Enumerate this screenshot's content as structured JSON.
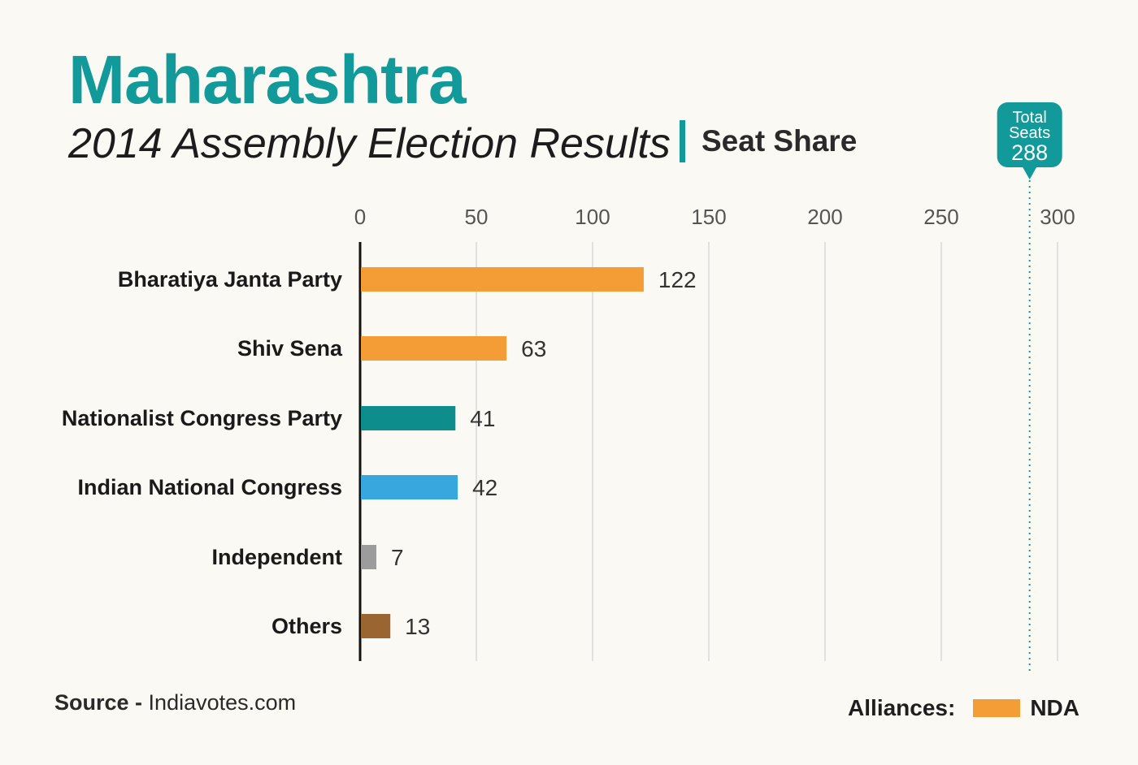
{
  "header": {
    "title": "Maharashtra",
    "subtitle": "2014 Assembly Election Results",
    "section_label": "Seat Share"
  },
  "total_marker": {
    "line1": "Total",
    "line2": "Seats",
    "value": "288",
    "seats": 288,
    "color": "#12999a"
  },
  "footer": {
    "source_label": "Source -",
    "source_value": "Indiavotes.com"
  },
  "legend": {
    "label": "Alliances:",
    "entries": [
      {
        "name": "NDA",
        "color": "#f49d37"
      }
    ]
  },
  "chart_data": {
    "type": "bar",
    "orientation": "horizontal",
    "title": "Seat Share",
    "categories": [
      "Bharatiya Janta Party",
      "Shiv Sena",
      "Nationalist Congress Party",
      "Indian National Congress",
      "Independent",
      "Others"
    ],
    "values": [
      122,
      63,
      41,
      42,
      7,
      13
    ],
    "colors": [
      "#f49d37",
      "#f49d37",
      "#0d8e8c",
      "#37a7de",
      "#9c9c9c",
      "#9a6530"
    ],
    "xlim": [
      0,
      300
    ],
    "xticks": [
      0,
      50,
      100,
      150,
      200,
      250,
      300
    ],
    "grid": true,
    "reference_line": {
      "value": 288,
      "style": "dotted"
    }
  }
}
